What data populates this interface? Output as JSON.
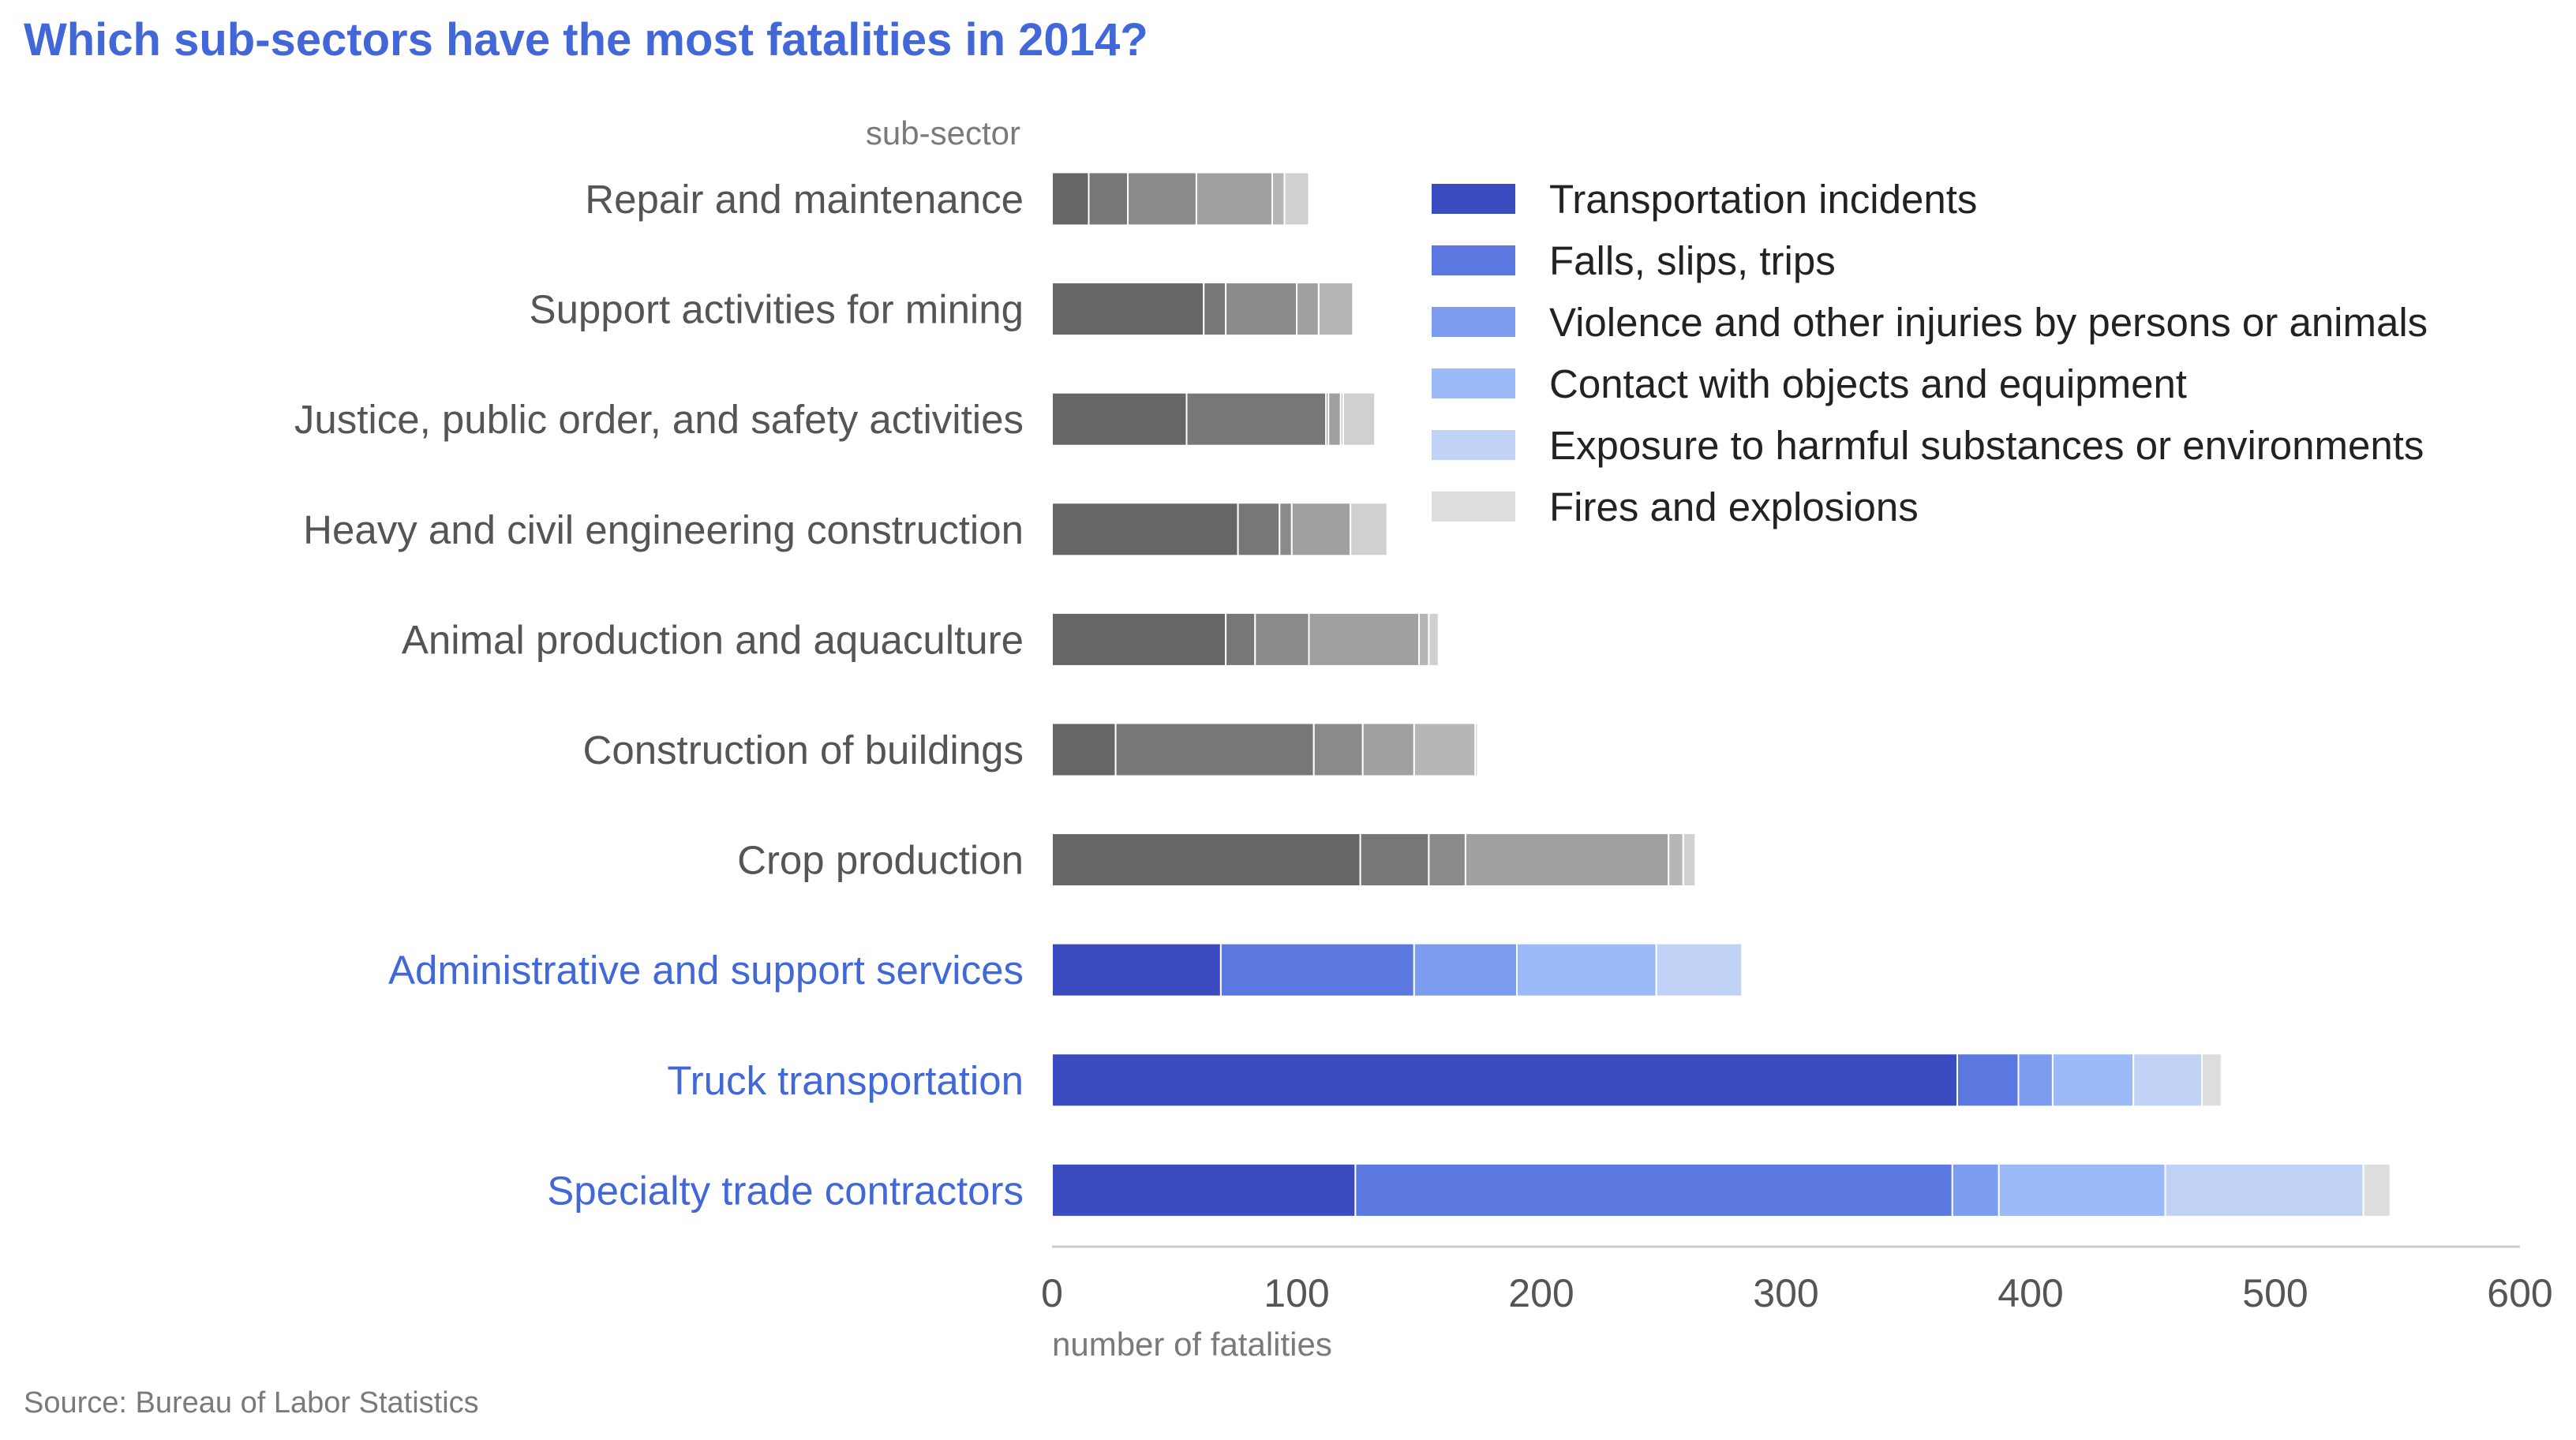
{
  "chart_data": {
    "type": "bar",
    "orientation": "horizontal",
    "stacked": true,
    "title": "Which sub-sectors have the most fatalities in 2014?",
    "source": "Source: Bureau of Labor Statistics",
    "ylabel": "sub-sector",
    "xlabel": "number of fatalities",
    "xlim": [
      0,
      600
    ],
    "xticks": [
      "0",
      "100",
      "200",
      "300",
      "400",
      "500",
      "600"
    ],
    "grid": false,
    "legend_position": "top-right",
    "categories": [
      "Repair and maintenance",
      "Support activities for mining",
      "Justice, public order, and safety activities",
      "Heavy and civil engineering construction",
      "Animal production and aquaculture",
      "Construction of buildings",
      "Crop production",
      "Administrative and support services",
      "Truck transportation",
      "Specialty trade contractors"
    ],
    "highlighted": [
      false,
      false,
      false,
      false,
      false,
      false,
      false,
      true,
      true,
      true
    ],
    "series": [
      {
        "name": "Transportation incidents",
        "color": "#3b4cc0",
        "values": [
          15,
          62,
          55,
          76,
          71,
          26,
          126,
          69,
          370,
          124
        ]
      },
      {
        "name": "Falls, slips, trips",
        "color": "#5a78e0",
        "values": [
          16,
          9,
          57,
          17,
          12,
          81,
          28,
          79,
          25,
          244
        ]
      },
      {
        "name": "Violence and other injuries by persons or animals",
        "color": "#7c9cf0",
        "values": [
          28,
          29,
          1,
          5,
          22,
          20,
          15,
          42,
          14,
          19
        ]
      },
      {
        "name": "Contact with objects and equipment",
        "color": "#9dbaf8",
        "values": [
          31,
          9,
          5,
          24,
          45,
          21,
          83,
          57,
          33,
          68
        ]
      },
      {
        "name": "Exposure to harmful substances or environments",
        "color": "#c0d3f6",
        "values": [
          5,
          14,
          1,
          0,
          4,
          25,
          6,
          35,
          28,
          81
        ]
      },
      {
        "name": "Fires and explosions",
        "color": "#dddddd",
        "values": [
          10,
          0,
          13,
          15,
          4,
          1,
          5,
          0,
          8,
          11
        ]
      }
    ],
    "muted_colors": [
      "#666666",
      "#777777",
      "#8a8a8a",
      "#a0a0a0",
      "#b6b6b6",
      "#d0d0d0"
    ],
    "highlight_label_color": "#4267d9",
    "label_color": "#555555",
    "title_color": "#4267d9"
  }
}
